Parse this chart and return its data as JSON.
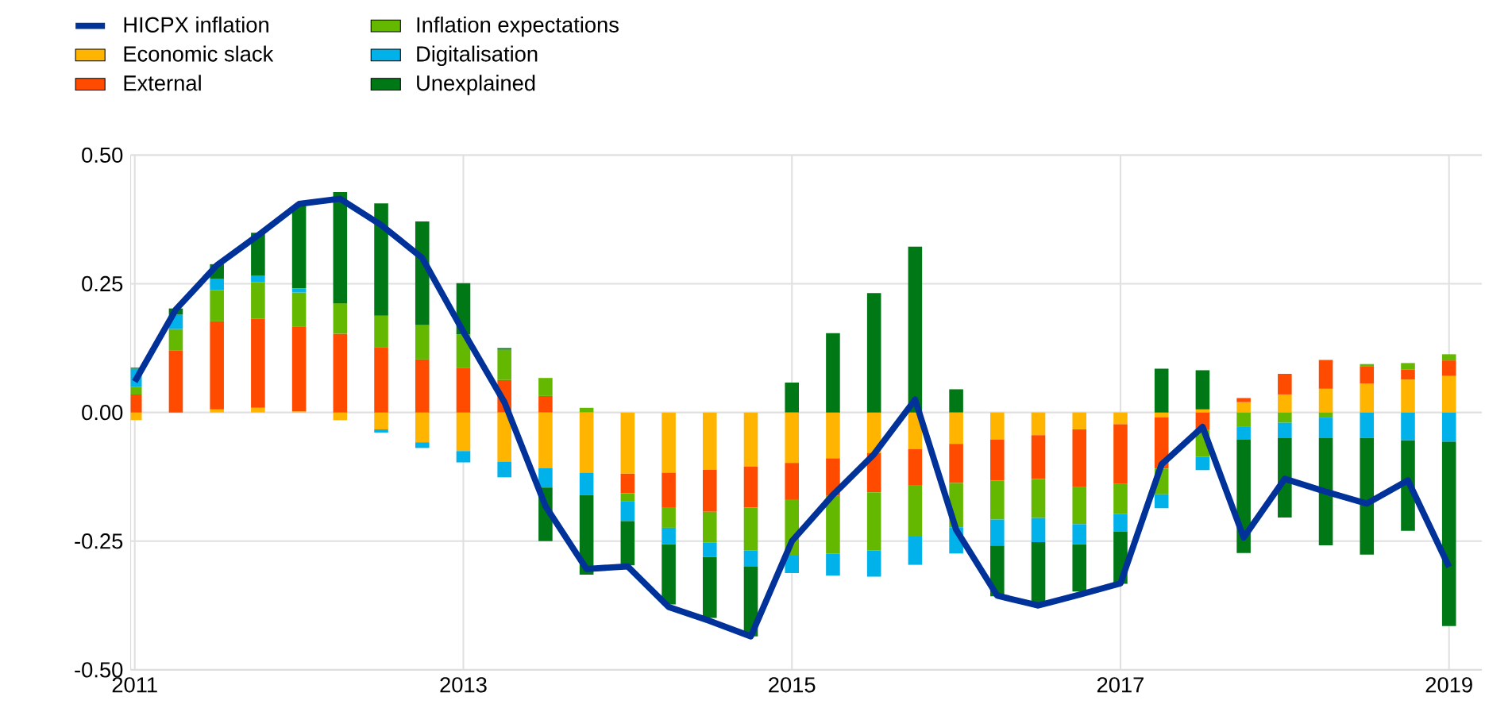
{
  "chart_data": {
    "type": "bar",
    "stacked": true,
    "grid": true,
    "legend": "top left",
    "categories": [
      "2011",
      null,
      null,
      null,
      null,
      null,
      null,
      null,
      "2013",
      null,
      null,
      null,
      null,
      null,
      null,
      null,
      "2015",
      null,
      null,
      null,
      null,
      null,
      null,
      null,
      "2017",
      null,
      null,
      null,
      null,
      null,
      null,
      null,
      "2019"
    ],
    "ylim": [
      -0.5,
      0.5
    ],
    "yticks": [
      {
        "value": -0.5,
        "label": "-0.50"
      },
      {
        "value": -0.25,
        "label": "-0.25"
      },
      {
        "value": 0,
        "label": "0.00"
      },
      {
        "value": 0.25,
        "label": "0.25"
      },
      {
        "value": 0.5,
        "label": "0.50"
      }
    ],
    "series": [
      {
        "name": "HICPX inflation",
        "type": "line",
        "color": "#003299",
        "values": [
          0.06,
          0.2,
          0.286,
          0.344,
          0.405,
          0.415,
          0.364,
          0.3,
          0.157,
          0.02,
          -0.182,
          -0.304,
          -0.299,
          -0.378,
          -0.405,
          -0.435,
          -0.25,
          -0.16,
          -0.081,
          0.025,
          -0.228,
          -0.356,
          -0.375,
          -0.354,
          -0.332,
          -0.101,
          -0.028,
          -0.243,
          -0.129,
          -0.154,
          -0.177,
          -0.132,
          -0.3
        ]
      },
      {
        "name": "Economic slack",
        "color": "#ffb400",
        "values": [
          -0.015,
          0,
          0.006,
          0.009,
          0.002,
          -0.015,
          -0.033,
          -0.058,
          -0.075,
          -0.096,
          -0.108,
          -0.117,
          -0.119,
          -0.117,
          -0.111,
          -0.105,
          -0.098,
          -0.089,
          -0.079,
          -0.071,
          -0.061,
          -0.053,
          -0.044,
          -0.033,
          -0.023,
          -0.01,
          0.006,
          0.02,
          0.035,
          0.046,
          0.056,
          0.064,
          0.071
        ]
      },
      {
        "name": "External",
        "color": "#ff4b00",
        "values": [
          0.035,
          0.12,
          0.171,
          0.173,
          0.165,
          0.153,
          0.127,
          0.103,
          0.086,
          0.063,
          0.032,
          0,
          -0.038,
          -0.067,
          -0.082,
          -0.08,
          -0.072,
          -0.073,
          -0.076,
          -0.07,
          -0.076,
          -0.079,
          -0.085,
          -0.111,
          -0.115,
          -0.099,
          -0.033,
          0.008,
          0.04,
          0.056,
          0.033,
          0.019,
          0.03
        ]
      },
      {
        "name": "Inflation expectations",
        "color": "#65b800",
        "values": [
          0.015,
          0.042,
          0.061,
          0.071,
          0.066,
          0.059,
          0.061,
          0.067,
          0.066,
          0.059,
          0.035,
          0.009,
          -0.016,
          -0.04,
          -0.06,
          -0.083,
          -0.108,
          -0.112,
          -0.113,
          -0.1,
          -0.086,
          -0.076,
          -0.076,
          -0.073,
          -0.059,
          -0.05,
          -0.053,
          -0.027,
          -0.02,
          -0.01,
          0.005,
          0.013,
          0.012
        ]
      },
      {
        "name": "Digitalisation",
        "color": "#00b1ea",
        "values": [
          0.035,
          0.028,
          0.022,
          0.013,
          0.008,
          0,
          -0.006,
          -0.011,
          -0.022,
          -0.03,
          -0.038,
          -0.043,
          -0.038,
          -0.032,
          -0.028,
          -0.031,
          -0.034,
          -0.043,
          -0.051,
          -0.055,
          -0.051,
          -0.051,
          -0.047,
          -0.039,
          -0.034,
          -0.027,
          -0.026,
          -0.026,
          -0.03,
          -0.04,
          -0.049,
          -0.054,
          -0.057
        ]
      },
      {
        "name": "Unexplained",
        "color": "#007816",
        "values": [
          0.002,
          0.012,
          0.028,
          0.083,
          0.161,
          0.216,
          0.218,
          0.201,
          0.099,
          0.003,
          -0.104,
          -0.155,
          -0.086,
          -0.117,
          -0.118,
          -0.136,
          0.058,
          0.154,
          0.232,
          0.322,
          0.045,
          -0.098,
          -0.121,
          -0.092,
          -0.102,
          0.085,
          0.076,
          -0.22,
          -0.154,
          -0.208,
          -0.227,
          -0.176,
          -0.358
        ]
      }
    ]
  }
}
